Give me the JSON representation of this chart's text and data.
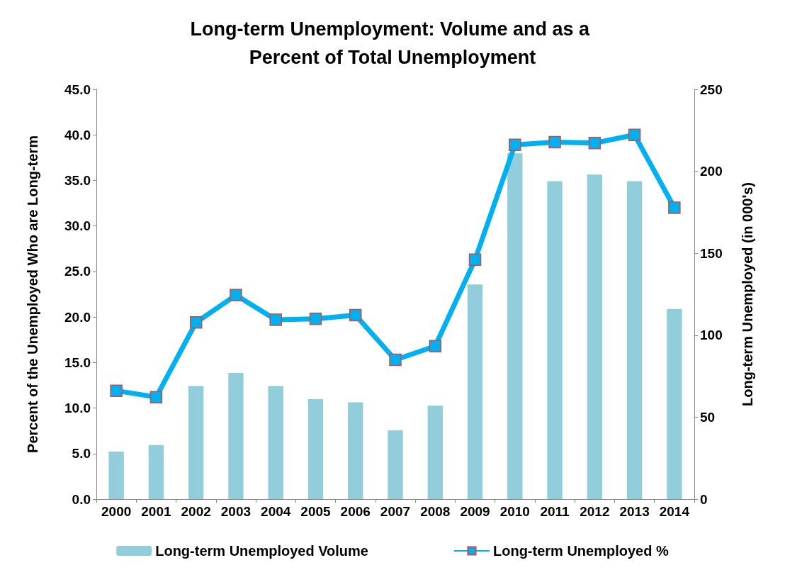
{
  "chart_data": {
    "type": "bar",
    "title": "Long-term Unemployment: Volume and as a Percent of Total Unemployment",
    "categories": [
      "2000",
      "2001",
      "2002",
      "2003",
      "2004",
      "2005",
      "2006",
      "2007",
      "2008",
      "2009",
      "2010",
      "2011",
      "2012",
      "2013",
      "2014"
    ],
    "series": [
      {
        "name": "Long-term Unemployed Volume",
        "axis": "y2",
        "color": "#92cddc",
        "values": [
          29,
          33,
          69,
          77,
          69,
          61,
          59,
          42,
          57,
          131,
          211,
          194,
          198,
          194,
          116
        ]
      },
      {
        "name": "Long-term Unemployed %",
        "type": "line",
        "color": "#00b0f0",
        "marker": "square",
        "values": [
          11.9,
          11.2,
          19.4,
          22.4,
          19.7,
          19.8,
          20.2,
          15.3,
          16.8,
          26.3,
          38.9,
          39.2,
          39.1,
          40.0,
          32.0
        ]
      }
    ],
    "ylabel": "Percent of the Unemployed Who are Long-term",
    "y2label": "Long-term Unemployed (in 000's)",
    "ylim": [
      0,
      45
    ],
    "yticks": [
      {
        "value": 0,
        "label": "0.0"
      },
      {
        "value": 5,
        "label": "5.0"
      },
      {
        "value": 10,
        "label": "10.0"
      },
      {
        "value": 15,
        "label": "15.0"
      },
      {
        "value": 20,
        "label": "20.0"
      },
      {
        "value": 25,
        "label": "25.0"
      },
      {
        "value": 30,
        "label": "30.0"
      },
      {
        "value": 35,
        "label": "35.0"
      },
      {
        "value": 40,
        "label": "40.0"
      },
      {
        "value": 45,
        "label": "45.0"
      }
    ],
    "y2lim": [
      0,
      250
    ],
    "y2ticks": [
      0,
      50,
      100,
      150,
      200,
      250
    ],
    "legend": "bottom",
    "grid": false
  }
}
